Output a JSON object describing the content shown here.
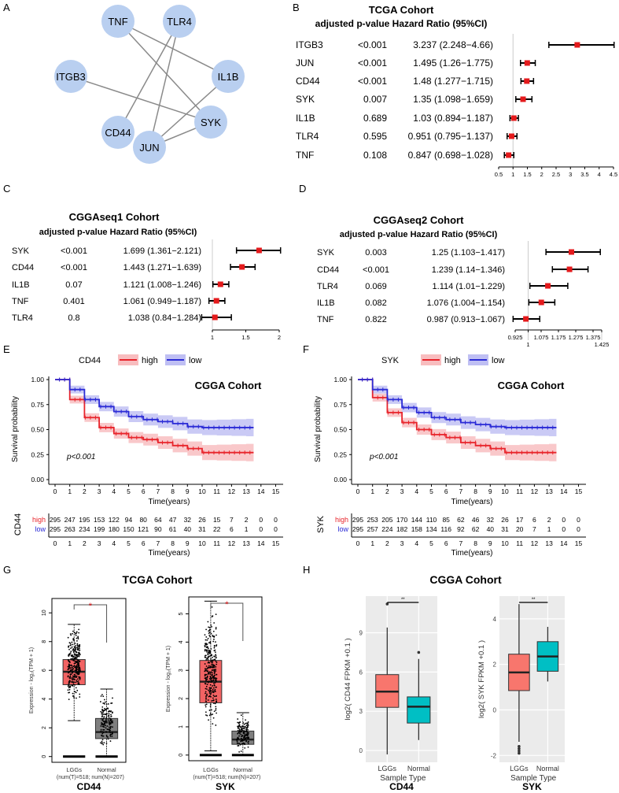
{
  "panel_letters": [
    "A",
    "B",
    "C",
    "D",
    "E",
    "F",
    "G",
    "H"
  ],
  "colors": {
    "node": "#b9cff0",
    "edge": "#8a8a8a",
    "hr_point": "#e41a1c",
    "km_high": "#e8242b",
    "km_low": "#2b2bd6",
    "box_red": "#f26363",
    "box_gray": "#7f7f7f",
    "gg_red": "#f8766d",
    "gg_teal": "#00bfc4",
    "gg_bg": "#ebebeb"
  },
  "network": {
    "nodes": [
      "TNF",
      "TLR4",
      "ITGB3",
      "IL1B",
      "CD44",
      "SYK",
      "JUN"
    ],
    "edges": [
      [
        "TNF",
        "IL1B"
      ],
      [
        "TNF",
        "SYK"
      ],
      [
        "TLR4",
        "CD44"
      ],
      [
        "TLR4",
        "JUN"
      ],
      [
        "ITGB3",
        "SYK"
      ],
      [
        "IL1B",
        "JUN"
      ],
      [
        "SYK",
        "JUN"
      ]
    ]
  },
  "chart_data": [
    {
      "type": "forest",
      "panel": "B",
      "title": "TCGA Cohort",
      "header": "adjusted p-value Hazard Ratio (95%CI)",
      "reference_line": 1,
      "xlim": [
        0.5,
        4.5
      ],
      "ticks": [
        "0.5",
        "1",
        "1.5",
        "2",
        "2.5",
        "3",
        "3.5",
        "4",
        "4.5"
      ],
      "rows": [
        {
          "gene": "ITGB3",
          "p": "<0.001",
          "hr_text": "3.237 (2.248−4.66)",
          "hr": 3.237,
          "lo": 2.248,
          "hi": 4.66
        },
        {
          "gene": "JUN",
          "p": "<0.001",
          "hr_text": "1.495 (1.26−1.775)",
          "hr": 1.495,
          "lo": 1.26,
          "hi": 1.775
        },
        {
          "gene": "CD44",
          "p": "<0.001",
          "hr_text": "1.48 (1.277−1.715)",
          "hr": 1.48,
          "lo": 1.277,
          "hi": 1.715
        },
        {
          "gene": "SYK",
          "p": "0.007",
          "hr_text": "1.35 (1.098−1.659)",
          "hr": 1.35,
          "lo": 1.098,
          "hi": 1.659
        },
        {
          "gene": "IL1B",
          "p": "0.689",
          "hr_text": "1.03 (0.894−1.187)",
          "hr": 1.03,
          "lo": 0.894,
          "hi": 1.187
        },
        {
          "gene": "TLR4",
          "p": "0.595",
          "hr_text": "0.951 (0.795−1.137)",
          "hr": 0.951,
          "lo": 0.795,
          "hi": 1.137
        },
        {
          "gene": "TNF",
          "p": "0.108",
          "hr_text": "0.847 (0.698−1.028)",
          "hr": 0.847,
          "lo": 0.698,
          "hi": 1.028
        }
      ]
    },
    {
      "type": "forest",
      "panel": "C",
      "title": "CGGAseq1 Cohort",
      "header": "adjusted p-value Hazard Ratio (95%CI)",
      "reference_line": 1,
      "xlim": [
        1,
        2
      ],
      "ticks": [
        "1",
        "1.5",
        "2"
      ],
      "rows": [
        {
          "gene": "SYK",
          "p": "<0.001",
          "hr_text": "1.699 (1.361−2.121)",
          "hr": 1.699,
          "lo": 1.361,
          "hi": 2.121
        },
        {
          "gene": "CD44",
          "p": "<0.001",
          "hr_text": "1.443 (1.271−1.639)",
          "hr": 1.443,
          "lo": 1.271,
          "hi": 1.639
        },
        {
          "gene": "IL1B",
          "p": "0.07",
          "hr_text": "1.121 (1.008−1.246)",
          "hr": 1.121,
          "lo": 1.008,
          "hi": 1.246
        },
        {
          "gene": "TNF",
          "p": "0.401",
          "hr_text": "1.061 (0.949−1.187)",
          "hr": 1.061,
          "lo": 0.949,
          "hi": 1.187
        },
        {
          "gene": "TLR4",
          "p": "0.8",
          "hr_text": "1.038 (0.84−1.284)",
          "hr": 1.038,
          "lo": 0.84,
          "hi": 1.284
        }
      ]
    },
    {
      "type": "forest",
      "panel": "D",
      "title": "CGGAseq2 Cohort",
      "header": "adjusted p-value  Hazard Ratio (95%CI)",
      "reference_line": 1,
      "xlim": [
        0.925,
        1.425
      ],
      "ticks": [
        "0.925",
        "1",
        "1.075",
        "1.175",
        "1.275",
        "1.375",
        "1.425"
      ],
      "rows": [
        {
          "gene": "SYK",
          "p": "0.003",
          "hr_text": "1.25 (1.103−1.417)",
          "hr": 1.25,
          "lo": 1.103,
          "hi": 1.417
        },
        {
          "gene": "CD44",
          "p": "<0.001",
          "hr_text": "1.239 (1.14−1.346)",
          "hr": 1.239,
          "lo": 1.14,
          "hi": 1.346
        },
        {
          "gene": "TLR4",
          "p": "0.069",
          "hr_text": "1.114 (1.01−1.229)",
          "hr": 1.114,
          "lo": 1.01,
          "hi": 1.229
        },
        {
          "gene": "IL1B",
          "p": "0.082",
          "hr_text": "1.076 (1.004−1.154)",
          "hr": 1.076,
          "lo": 1.004,
          "hi": 1.154
        },
        {
          "gene": "TNF",
          "p": "0.822",
          "hr_text": "0.987 (0.913−1.067)",
          "hr": 0.987,
          "lo": 0.913,
          "hi": 1.067
        }
      ]
    },
    {
      "type": "line",
      "panel": "E",
      "title": "CGGA Cohort",
      "legend_title": "CD44",
      "xlabel": "Time(years)",
      "ylabel": "Survival probability",
      "pvalue": "p<0.001",
      "xlim": [
        0,
        15
      ],
      "ylim": [
        0,
        1
      ],
      "xticks": [
        "0",
        "1",
        "2",
        "3",
        "4",
        "5",
        "6",
        "7",
        "8",
        "9",
        "10",
        "11",
        "12",
        "13",
        "14",
        "15"
      ],
      "yticks": [
        "0.00",
        "0.25",
        "0.50",
        "0.75",
        "1.00"
      ],
      "x": [
        0,
        1,
        2,
        3,
        4,
        5,
        6,
        7,
        8,
        9,
        10,
        11,
        12,
        13,
        13.5
      ],
      "series": [
        {
          "name": "high",
          "values": [
            1,
            0.8,
            0.62,
            0.52,
            0.46,
            0.42,
            0.4,
            0.37,
            0.34,
            0.31,
            0.27,
            0.27,
            0.27,
            0.27,
            0.27
          ]
        },
        {
          "name": "low",
          "values": [
            1,
            0.9,
            0.8,
            0.73,
            0.68,
            0.63,
            0.6,
            0.58,
            0.56,
            0.53,
            0.52,
            0.52,
            0.52,
            0.52,
            0.52
          ]
        }
      ],
      "risk_table": {
        "label": "CD44",
        "rows": [
          {
            "name": "high",
            "counts": [
              "295",
              "247",
              "195",
              "153",
              "122",
              "94",
              "80",
              "64",
              "47",
              "32",
              "26",
              "15",
              "7",
              "2",
              "0",
              "0"
            ]
          },
          {
            "name": "low",
            "counts": [
              "295",
              "263",
              "234",
              "199",
              "180",
              "150",
              "121",
              "90",
              "61",
              "40",
              "31",
              "22",
              "6",
              "1",
              "0",
              "0"
            ]
          }
        ]
      }
    },
    {
      "type": "line",
      "panel": "F",
      "title": "CGGA Cohort",
      "legend_title": "SYK",
      "xlabel": "Time(years)",
      "ylabel": "Survival probability",
      "pvalue": "p<0.001",
      "xlim": [
        0,
        15
      ],
      "ylim": [
        0,
        1
      ],
      "xticks": [
        "0",
        "1",
        "2",
        "3",
        "4",
        "5",
        "6",
        "7",
        "8",
        "9",
        "10",
        "11",
        "12",
        "13",
        "14",
        "15"
      ],
      "yticks": [
        "0.00",
        "0.25",
        "0.50",
        "0.75",
        "1.00"
      ],
      "x": [
        0,
        1,
        2,
        3,
        4,
        5,
        6,
        7,
        8,
        9,
        10,
        11,
        12,
        13,
        13.5
      ],
      "series": [
        {
          "name": "high",
          "values": [
            1,
            0.82,
            0.67,
            0.57,
            0.5,
            0.45,
            0.42,
            0.37,
            0.34,
            0.31,
            0.27,
            0.27,
            0.27,
            0.27,
            0.27
          ]
        },
        {
          "name": "low",
          "values": [
            1,
            0.9,
            0.8,
            0.72,
            0.67,
            0.62,
            0.6,
            0.57,
            0.55,
            0.53,
            0.52,
            0.52,
            0.52,
            0.52,
            0.52
          ]
        }
      ],
      "risk_table": {
        "label": "SYK",
        "rows": [
          {
            "name": "high",
            "counts": [
              "295",
              "253",
              "205",
              "170",
              "144",
              "110",
              "85",
              "62",
              "46",
              "32",
              "26",
              "17",
              "6",
              "2",
              "0",
              "0"
            ]
          },
          {
            "name": "low",
            "counts": [
              "295",
              "257",
              "224",
              "182",
              "158",
              "134",
              "116",
              "92",
              "62",
              "40",
              "31",
              "20",
              "7",
              "1",
              "0",
              "0"
            ]
          }
        ]
      }
    },
    {
      "type": "box",
      "panel": "G",
      "title": "TCGA Cohort",
      "plots": [
        {
          "gene": "CD44",
          "ylabel": "Expression - log₂(TPM + 1)",
          "ylim": [
            -0.4,
            11
          ],
          "yticks": [
            "0",
            "2",
            "4",
            "6",
            "8",
            "10"
          ],
          "significance": "*",
          "categories": [
            "LGGs",
            "Normal"
          ],
          "sublabel": "(num(T)=518; num(N)=207)",
          "boxes": [
            {
              "q1": 5.0,
              "median": 5.9,
              "q3": 6.75,
              "lo": 2.5,
              "hi": 9.2
            },
            {
              "q1": 1.25,
              "median": 1.7,
              "q3": 2.65,
              "lo": 0,
              "hi": 4.7
            }
          ]
        },
        {
          "gene": "SYK",
          "ylabel": "Expression - log₂(TPM + 1)",
          "ylim": [
            -0.2,
            5.6
          ],
          "yticks": [
            "0",
            "1",
            "2",
            "3",
            "4",
            "5"
          ],
          "significance": "*",
          "categories": [
            "LGGs",
            "Normal"
          ],
          "sublabel": "(num(T)=518; num(N)=207)",
          "boxes": [
            {
              "q1": 1.85,
              "median": 2.6,
              "q3": 3.35,
              "lo": 0.15,
              "hi": 5.45
            },
            {
              "q1": 0.38,
              "median": 0.55,
              "q3": 0.85,
              "lo": 0,
              "hi": 1.5
            }
          ]
        }
      ]
    },
    {
      "type": "box",
      "panel": "H",
      "title": "CGGA Cohort",
      "plots": [
        {
          "gene": "CD44",
          "ylabel": "log2( CD44 FPKM +0.1 )",
          "xlabel": "Sample Type",
          "ylim": [
            -0.9,
            11.8
          ],
          "yticks": [
            "0",
            "3",
            "6",
            "9"
          ],
          "significance": "**",
          "categories": [
            "LGGs",
            "Normal"
          ],
          "boxes": [
            {
              "q1": 3.3,
              "median": 4.5,
              "q3": 5.8,
              "lo": -0.3,
              "hi": 9.4,
              "outliers": [
                11.2
              ]
            },
            {
              "q1": 2.1,
              "median": 3.35,
              "q3": 4.1,
              "lo": 0.8,
              "hi": 7.0,
              "outliers": [
                7.5
              ]
            }
          ]
        },
        {
          "gene": "SYK",
          "ylabel": "log2( SYK FPKM +0.1 )",
          "xlabel": "Sample Type",
          "ylim": [
            -2.3,
            5
          ],
          "yticks": [
            "-2",
            "0",
            "2",
            "4"
          ],
          "significance": "**",
          "categories": [
            "LGGs",
            "Normal"
          ],
          "boxes": [
            {
              "q1": 0.85,
              "median": 1.65,
              "q3": 2.45,
              "lo": -1.4,
              "hi": 4.65,
              "outliers": [
                -1.6,
                -1.7,
                -1.8,
                -1.9
              ]
            },
            {
              "q1": 1.7,
              "median": 2.35,
              "q3": 3.0,
              "lo": 1.25,
              "hi": 3.65
            }
          ]
        }
      ]
    }
  ]
}
